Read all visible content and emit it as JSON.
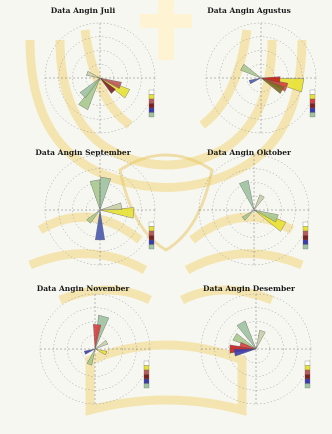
{
  "watermark": {
    "description_colors": {
      "gold": "#f3df9a",
      "light": "#fff3d0",
      "accent": "#e8c86a"
    }
  },
  "chart_data": [
    {
      "type": "rose",
      "title": "Data Angin Juli",
      "petals": [
        {
          "dir": 210,
          "len": 0.62,
          "color": "#a9c98f"
        },
        {
          "dir": 225,
          "len": 0.45,
          "color": "#9fc4a0"
        },
        {
          "dir": 120,
          "len": 0.58,
          "color": "#e8e233"
        },
        {
          "dir": 110,
          "len": 0.4,
          "color": "#b95a5a"
        },
        {
          "dir": 135,
          "len": 0.35,
          "color": "#7d2020"
        },
        {
          "dir": 290,
          "len": 0.25,
          "color": "#c9d0a8"
        }
      ],
      "legend_colors": [
        "#ffffff",
        "#e8e233",
        "#b95a5a",
        "#7d2020",
        "#3b3bb0",
        "#9fc4a0"
      ]
    },
    {
      "type": "rose",
      "title": "Data Angin Agustus",
      "petals": [
        {
          "dir": 100,
          "len": 0.78,
          "color": "#e8e233"
        },
        {
          "dir": 110,
          "len": 0.5,
          "color": "#d74040"
        },
        {
          "dir": 95,
          "len": 0.35,
          "color": "#c42020"
        },
        {
          "dir": 300,
          "len": 0.4,
          "color": "#a9c98f"
        },
        {
          "dir": 250,
          "len": 0.22,
          "color": "#4a5ab0"
        },
        {
          "dir": 120,
          "len": 0.45,
          "color": "#7d6a20"
        }
      ],
      "legend_colors": [
        "#ffffff",
        "#e8e233",
        "#d74040",
        "#7d2020",
        "#3b3bb0",
        "#9fc4a0"
      ]
    },
    {
      "type": "rose",
      "title": "Data Angin September",
      "petals": [
        {
          "dir": 10,
          "len": 0.6,
          "color": "#9fc4a0"
        },
        {
          "dir": 350,
          "len": 0.55,
          "color": "#a9c98f"
        },
        {
          "dir": 95,
          "len": 0.62,
          "color": "#e8e233"
        },
        {
          "dir": 80,
          "len": 0.4,
          "color": "#c9d0a8"
        },
        {
          "dir": 180,
          "len": 0.55,
          "color": "#4a5ab0"
        },
        {
          "dir": 225,
          "len": 0.3,
          "color": "#a9c98f"
        }
      ],
      "legend_colors": [
        "#ffffff",
        "#e8e233",
        "#b95a5a",
        "#7d2020",
        "#3b3bb0",
        "#9fc4a0"
      ]
    },
    {
      "type": "rose",
      "title": "Data Angin Oktober",
      "petals": [
        {
          "dir": 120,
          "len": 0.62,
          "color": "#e8e233"
        },
        {
          "dir": 110,
          "len": 0.45,
          "color": "#a9c98f"
        },
        {
          "dir": 340,
          "len": 0.55,
          "color": "#9fc4a0"
        },
        {
          "dir": 30,
          "len": 0.3,
          "color": "#c9d0a8"
        },
        {
          "dir": 230,
          "len": 0.25,
          "color": "#a9c98f"
        }
      ],
      "legend_colors": [
        "#ffffff",
        "#e8e233",
        "#b95a5a",
        "#7d2020",
        "#3b3bb0",
        "#9fc4a0"
      ]
    },
    {
      "type": "rose",
      "title": "Data Angin November",
      "petals": [
        {
          "dir": 15,
          "len": 0.62,
          "color": "#9fc4a0"
        },
        {
          "dir": 5,
          "len": 0.45,
          "color": "#d74040"
        },
        {
          "dir": 200,
          "len": 0.3,
          "color": "#a9c98f"
        },
        {
          "dir": 60,
          "len": 0.25,
          "color": "#c9d0a8"
        },
        {
          "dir": 110,
          "len": 0.22,
          "color": "#e8e233"
        },
        {
          "dir": 250,
          "len": 0.2,
          "color": "#3b3bb0"
        }
      ],
      "legend_colors": [
        "#ffffff",
        "#e8e233",
        "#b95a5a",
        "#7d2020",
        "#3b3bb0",
        "#9fc4a0"
      ]
    },
    {
      "type": "rose",
      "title": "Data Angin Desember",
      "petals": [
        {
          "dir": 270,
          "len": 0.48,
          "color": "#c42020"
        },
        {
          "dir": 260,
          "len": 0.4,
          "color": "#3b3bb0"
        },
        {
          "dir": 300,
          "len": 0.45,
          "color": "#a9c98f"
        },
        {
          "dir": 330,
          "len": 0.55,
          "color": "#9fc4a0"
        },
        {
          "dir": 20,
          "len": 0.35,
          "color": "#c9d0a8"
        },
        {
          "dir": 285,
          "len": 0.3,
          "color": "#d74040"
        }
      ],
      "legend_colors": [
        "#ffffff",
        "#e8e233",
        "#b95a5a",
        "#7d2020",
        "#3b3bb0",
        "#9fc4a0"
      ]
    }
  ]
}
